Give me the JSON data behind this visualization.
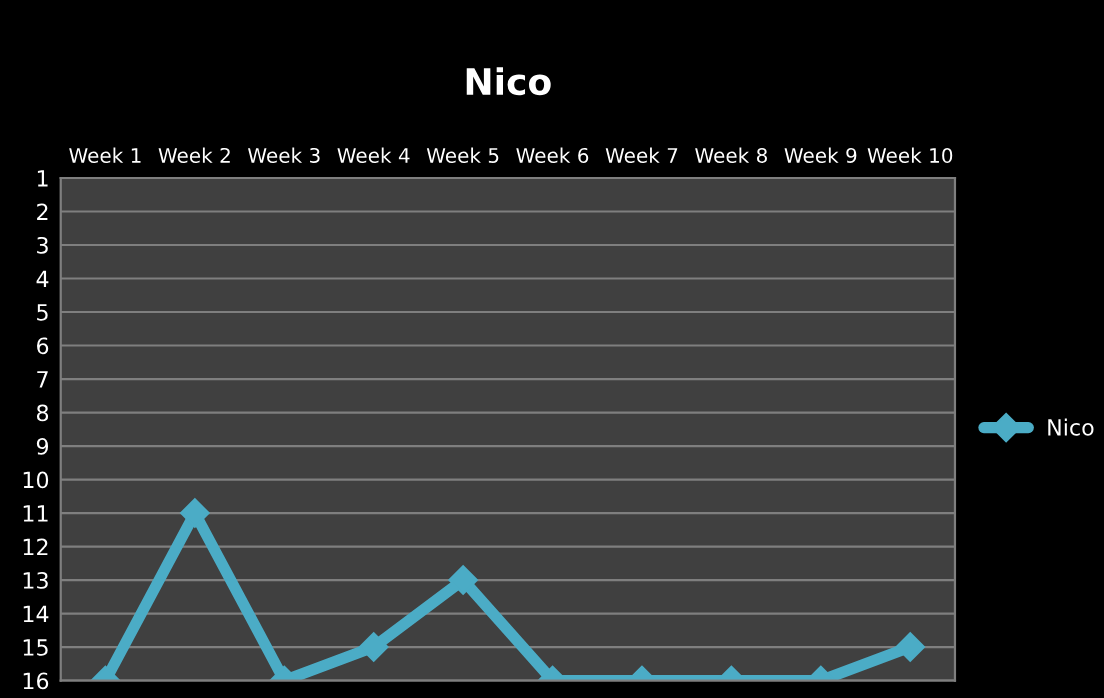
{
  "chart_data": {
    "type": "line",
    "title": "Nico",
    "categories": [
      "Week 1",
      "Week 2",
      "Week 3",
      "Week 4",
      "Week 5",
      "Week 6",
      "Week 7",
      "Week 8",
      "Week 9",
      "Week 10"
    ],
    "series": [
      {
        "name": "Nico",
        "color": "#4bacc6",
        "values": [
          16,
          11,
          16,
          15,
          13,
          16,
          16,
          16,
          16,
          15
        ]
      }
    ],
    "ylim": [
      16,
      1
    ],
    "yticks": [
      1,
      2,
      3,
      4,
      5,
      6,
      7,
      8,
      9,
      10,
      11,
      12,
      13,
      14,
      15,
      16
    ],
    "grid": "y",
    "legend": "right",
    "marker": "diamond",
    "line_style": "solid"
  }
}
